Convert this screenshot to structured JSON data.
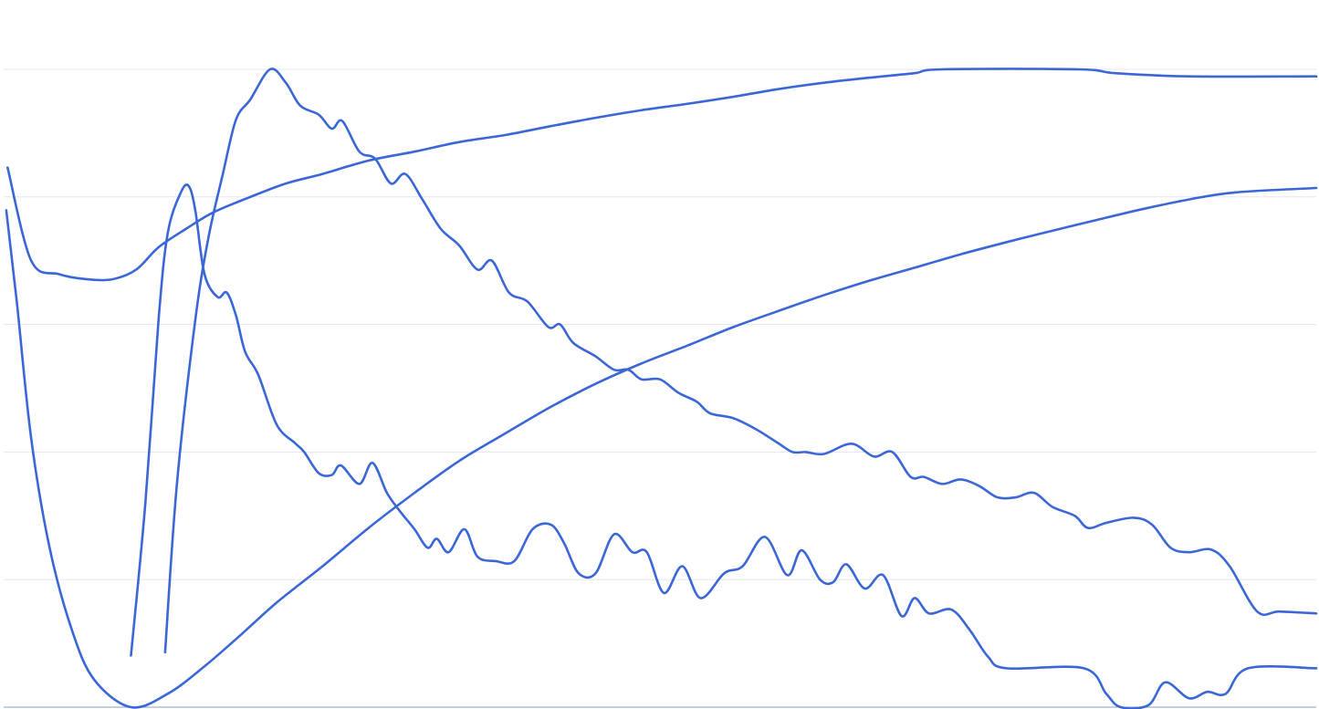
{
  "chart_data": {
    "type": "line",
    "title": "",
    "xlabel": "",
    "ylabel": "",
    "xlim": [
      0,
      100
    ],
    "ylim": [
      0,
      100
    ],
    "grid": true,
    "gridlines_y": [
      0,
      20,
      40,
      60,
      80,
      100
    ],
    "legend": "none",
    "line_color": "#3b67d6",
    "grid_color": "#e3e7ee",
    "series": [
      {
        "points": [
          [
            0.3,
            84.6
          ],
          [
            2.1,
            70
          ],
          [
            4.2,
            67.9
          ],
          [
            6.3,
            67.1
          ],
          [
            8.3,
            67.1
          ],
          [
            10.1,
            68.6
          ],
          [
            11.8,
            72.1
          ],
          [
            13.9,
            75
          ],
          [
            16,
            77.6
          ],
          [
            18.8,
            80
          ],
          [
            21.5,
            82.1
          ],
          [
            24.3,
            83.6
          ],
          [
            27.8,
            85.7
          ],
          [
            31.3,
            87.1
          ],
          [
            34.7,
            88.6
          ],
          [
            38.2,
            89.7
          ],
          [
            41.7,
            91.1
          ],
          [
            45.1,
            92.4
          ],
          [
            48.6,
            93.6
          ],
          [
            52.1,
            94.6
          ],
          [
            55.6,
            95.7
          ],
          [
            59,
            96.9
          ],
          [
            62.5,
            97.9
          ],
          [
            66,
            98.7
          ],
          [
            69.4,
            99.4
          ],
          [
            71.5,
            100
          ],
          [
            81.9,
            100
          ],
          [
            84.7,
            99.4
          ],
          [
            90.3,
            98.9
          ],
          [
            100,
            98.9
          ]
        ]
      },
      {
        "points": [
          [
            0.2,
            77.9
          ],
          [
            1,
            63.6
          ],
          [
            2.1,
            42.1
          ],
          [
            3.5,
            25
          ],
          [
            5.2,
            12.1
          ],
          [
            6.9,
            4.3
          ],
          [
            9.7,
            0
          ],
          [
            12.5,
            2.1
          ],
          [
            15.3,
            6.4
          ],
          [
            18.1,
            11.4
          ],
          [
            20.8,
            16.4
          ],
          [
            24.3,
            22.1
          ],
          [
            27.8,
            28.1
          ],
          [
            31.3,
            33.6
          ],
          [
            34.7,
            38.6
          ],
          [
            38.2,
            42.9
          ],
          [
            41.7,
            47.1
          ],
          [
            45.1,
            50.7
          ],
          [
            48.6,
            53.9
          ],
          [
            52.1,
            56.7
          ],
          [
            55.6,
            59.6
          ],
          [
            59,
            62.1
          ],
          [
            62.5,
            64.6
          ],
          [
            66,
            66.9
          ],
          [
            69.4,
            68.9
          ],
          [
            72.9,
            71
          ],
          [
            76.4,
            72.9
          ],
          [
            79.9,
            74.7
          ],
          [
            83.3,
            76.4
          ],
          [
            86.8,
            78.1
          ],
          [
            90.3,
            79.6
          ],
          [
            93.8,
            80.7
          ],
          [
            100,
            81.4
          ]
        ]
      },
      {
        "points": [
          [
            9.7,
            8.1
          ],
          [
            10.8,
            32.1
          ],
          [
            11.8,
            60.7
          ],
          [
            12.5,
            74.3
          ],
          [
            13.5,
            80.7
          ],
          [
            14.1,
            81.7
          ],
          [
            14.6,
            77.9
          ],
          [
            15.3,
            67.9
          ],
          [
            16.3,
            64.3
          ],
          [
            17,
            65
          ],
          [
            17.7,
            61.4
          ],
          [
            18.4,
            55.7
          ],
          [
            19.4,
            52.1
          ],
          [
            20.8,
            44.3
          ],
          [
            22.2,
            41.4
          ],
          [
            22.9,
            40
          ],
          [
            24,
            36.7
          ],
          [
            25,
            36.4
          ],
          [
            25.7,
            37.9
          ],
          [
            27.1,
            35
          ],
          [
            28.1,
            38.3
          ],
          [
            29.2,
            33.6
          ],
          [
            30.2,
            30.7
          ],
          [
            31.3,
            27.9
          ],
          [
            32.3,
            25
          ],
          [
            33,
            26.4
          ],
          [
            33.9,
            24.3
          ],
          [
            35.1,
            27.9
          ],
          [
            36.1,
            23.6
          ],
          [
            37.5,
            22.9
          ],
          [
            38.9,
            22.9
          ],
          [
            40.3,
            27.9
          ],
          [
            41.7,
            28.6
          ],
          [
            42.7,
            25.7
          ],
          [
            43.8,
            21
          ],
          [
            45.1,
            21
          ],
          [
            46.5,
            27.1
          ],
          [
            47.9,
            24.3
          ],
          [
            49,
            24.3
          ],
          [
            50.3,
            17.9
          ],
          [
            51.7,
            22.1
          ],
          [
            53.1,
            17.1
          ],
          [
            54.9,
            21
          ],
          [
            56.3,
            22.1
          ],
          [
            58,
            26.7
          ],
          [
            59.7,
            20.7
          ],
          [
            60.8,
            24.6
          ],
          [
            62.2,
            20
          ],
          [
            63.2,
            19.6
          ],
          [
            64.2,
            22.4
          ],
          [
            65.6,
            18.6
          ],
          [
            67,
            20.7
          ],
          [
            68.4,
            14.3
          ],
          [
            69.4,
            17.1
          ],
          [
            70.5,
            14.7
          ],
          [
            72.2,
            15.3
          ],
          [
            73.6,
            12.1
          ],
          [
            75,
            7.9
          ],
          [
            76.4,
            6.1
          ],
          [
            82.3,
            6.1
          ],
          [
            84,
            2.1
          ],
          [
            85.1,
            0
          ],
          [
            87.2,
            0.3
          ],
          [
            88.5,
            3.9
          ],
          [
            90.3,
            1.4
          ],
          [
            91.7,
            2.4
          ],
          [
            93.1,
            2.1
          ],
          [
            94.8,
            6.1
          ],
          [
            100,
            6.1
          ]
        ]
      },
      {
        "points": [
          [
            12.3,
            8.6
          ],
          [
            13.2,
            35
          ],
          [
            14.6,
            60.7
          ],
          [
            15.6,
            73.6
          ],
          [
            16.7,
            83.6
          ],
          [
            17.7,
            92.1
          ],
          [
            18.8,
            95.3
          ],
          [
            20.3,
            100
          ],
          [
            21.5,
            97.9
          ],
          [
            22.6,
            94.3
          ],
          [
            24,
            92.9
          ],
          [
            25,
            90.7
          ],
          [
            25.8,
            91.9
          ],
          [
            27.1,
            87.1
          ],
          [
            28.3,
            86
          ],
          [
            29.5,
            82.1
          ],
          [
            30.6,
            83.6
          ],
          [
            31.9,
            79.6
          ],
          [
            33.3,
            75
          ],
          [
            34.7,
            72.4
          ],
          [
            36.1,
            68.6
          ],
          [
            37.2,
            70
          ],
          [
            38.5,
            65
          ],
          [
            39.9,
            63.6
          ],
          [
            41.5,
            59.6
          ],
          [
            42.4,
            60
          ],
          [
            43.4,
            57.1
          ],
          [
            45.1,
            55
          ],
          [
            46.5,
            52.9
          ],
          [
            47.6,
            52.9
          ],
          [
            48.6,
            51.4
          ],
          [
            50,
            51.4
          ],
          [
            51.4,
            49.3
          ],
          [
            52.8,
            47.9
          ],
          [
            53.8,
            46.1
          ],
          [
            55.6,
            45.3
          ],
          [
            57.3,
            43.6
          ],
          [
            59,
            41.4
          ],
          [
            60.1,
            40
          ],
          [
            61.1,
            40
          ],
          [
            62.5,
            39.7
          ],
          [
            64.6,
            41.3
          ],
          [
            66.3,
            39.3
          ],
          [
            67.7,
            40
          ],
          [
            69.1,
            36.1
          ],
          [
            70.1,
            36.1
          ],
          [
            71.5,
            35
          ],
          [
            72.9,
            35.7
          ],
          [
            74.3,
            34.7
          ],
          [
            75.7,
            32.9
          ],
          [
            77.1,
            32.9
          ],
          [
            78.5,
            33.6
          ],
          [
            79.9,
            31.4
          ],
          [
            81.6,
            30
          ],
          [
            82.6,
            28.1
          ],
          [
            84,
            28.9
          ],
          [
            86.1,
            29.7
          ],
          [
            87.5,
            28.6
          ],
          [
            88.9,
            25
          ],
          [
            90.3,
            24.3
          ],
          [
            92,
            24.7
          ],
          [
            93.4,
            22.1
          ],
          [
            95.5,
            15
          ],
          [
            97.2,
            15
          ],
          [
            100,
            14.7
          ]
        ]
      }
    ]
  }
}
